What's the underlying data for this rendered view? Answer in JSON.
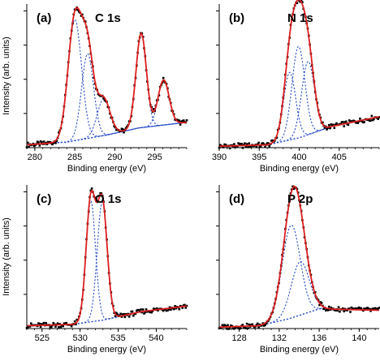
{
  "chart_data": [
    {
      "type": "line",
      "tag": "(a)",
      "title": "C 1s",
      "xlabel": "Binding energy (eV)",
      "ylabel": "Intensity (arb. units)",
      "xlim": [
        279,
        299
      ],
      "xticks": [
        280,
        285,
        290,
        295
      ],
      "background": {
        "x": [
          279,
          284,
          289,
          293,
          299
        ],
        "values": [
          0.02,
          0.04,
          0.09,
          0.14,
          0.18
        ]
      },
      "peaks": [
        {
          "center": 285.0,
          "height": 0.86,
          "width": 0.85
        },
        {
          "center": 286.6,
          "height": 0.6,
          "width": 0.75
        },
        {
          "center": 288.6,
          "height": 0.26,
          "width": 0.8
        },
        {
          "center": 293.3,
          "height": 0.67,
          "width": 0.65
        },
        {
          "center": 296.1,
          "height": 0.32,
          "width": 0.7
        }
      ]
    },
    {
      "type": "line",
      "tag": "(b)",
      "title": "N 1s",
      "xlabel": "Binding energy (eV)",
      "ylabel": "",
      "xlim": [
        390,
        410
      ],
      "xticks": [
        390,
        395,
        400,
        405
      ],
      "background": {
        "x": [
          390,
          396,
          400,
          404,
          410
        ],
        "values": [
          0.01,
          0.02,
          0.07,
          0.15,
          0.22
        ]
      },
      "peaks": [
        {
          "center": 398.8,
          "height": 0.48,
          "width": 0.75
        },
        {
          "center": 399.9,
          "height": 0.65,
          "width": 0.8
        },
        {
          "center": 401.1,
          "height": 0.52,
          "width": 0.8
        }
      ]
    },
    {
      "type": "line",
      "tag": "(c)",
      "title": "O 1s",
      "xlabel": "Binding energy (eV)",
      "ylabel": "Intensity (arb. units)",
      "xlim": [
        523,
        544
      ],
      "xticks": [
        525,
        530,
        535,
        540
      ],
      "background": {
        "x": [
          523,
          529,
          533,
          538,
          544
        ],
        "values": [
          0.02,
          0.03,
          0.06,
          0.12,
          0.16
        ]
      },
      "peaks": [
        {
          "center": 531.4,
          "height": 0.86,
          "width": 0.62
        },
        {
          "center": 532.9,
          "height": 0.84,
          "width": 0.65
        }
      ]
    },
    {
      "type": "line",
      "tag": "(d)",
      "title": "P 2p",
      "xlabel": "Binding energy (eV)",
      "ylabel": "",
      "xlim": [
        126,
        142
      ],
      "xticks": [
        128,
        132,
        136,
        140
      ],
      "background": {
        "x": [
          126,
          130,
          133,
          136,
          142
        ],
        "values": [
          0.01,
          0.02,
          0.07,
          0.14,
          0.13
        ]
      },
      "peaks": [
        {
          "center": 133.2,
          "height": 0.66,
          "width": 0.9
        },
        {
          "center": 134.1,
          "height": 0.38,
          "width": 0.9
        }
      ]
    }
  ],
  "colors": {
    "fit": "#dd1f1f",
    "components": "#2b4fc8",
    "data_points": "#000000",
    "axes": "#000000"
  }
}
